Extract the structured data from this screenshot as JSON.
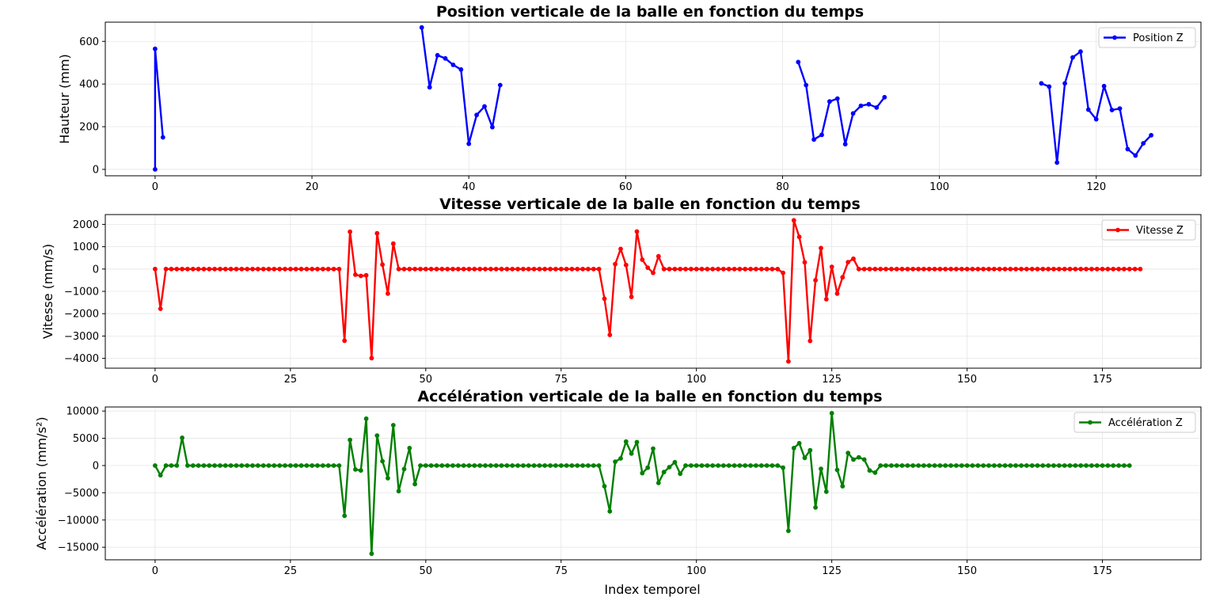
{
  "chart_data": [
    {
      "type": "line",
      "title": "Position verticale de la balle en fonction du temps",
      "xlabel": "",
      "ylabel": "Hauteur (mm)",
      "xlim": [
        -6.35,
        133.35
      ],
      "ylim": [
        -30,
        690
      ],
      "xticks": [
        0,
        20,
        40,
        60,
        80,
        100,
        120
      ],
      "yticks": [
        0,
        200,
        400,
        600
      ],
      "grid": true,
      "legend_position": "top-right",
      "series": [
        {
          "name": "Position Z",
          "color": "#0000ff",
          "segments": [
            {
              "x": [
                0,
                0,
                1
              ],
              "y": [
                0,
                565,
                150
              ]
            },
            {
              "x": [
                34,
                35,
                36,
                37,
                38,
                39,
                40,
                41,
                42,
                43,
                44
              ],
              "y": [
                665,
                385,
                535,
                520,
                490,
                468,
                120,
                255,
                295,
                198,
                395
              ]
            },
            {
              "x": [
                82,
                83,
                84,
                85,
                86,
                87,
                88,
                89,
                90,
                91,
                92,
                93
              ],
              "y": [
                503,
                395,
                140,
                162,
                318,
                332,
                118,
                262,
                298,
                305,
                290,
                338
              ]
            },
            {
              "x": [
                113,
                114,
                115,
                116,
                117,
                118,
                119,
                120,
                121,
                122,
                123,
                124,
                125,
                126,
                127
              ],
              "y": [
                403,
                388,
                32,
                403,
                525,
                552,
                280,
                235,
                390,
                278,
                285,
                95,
                65,
                122,
                160
              ]
            }
          ]
        }
      ]
    },
    {
      "type": "line",
      "title": "Vitesse verticale de la balle en fonction du temps",
      "xlabel": "",
      "ylabel": "Vitesse (mm/s)",
      "xlim": [
        -9.2,
        193.2
      ],
      "ylim": [
        -4440,
        2440
      ],
      "xticks": [
        0,
        25,
        50,
        75,
        100,
        125,
        150,
        175
      ],
      "yticks": [
        -4000,
        -3000,
        -2000,
        -1000,
        0,
        1000,
        2000
      ],
      "grid": true,
      "legend_position": "top-right",
      "series": [
        {
          "name": "Vitesse Z",
          "color": "#ff0000",
          "x_start": 0,
          "values": [
            0,
            -1780,
            0,
            0,
            0,
            0,
            0,
            0,
            0,
            0,
            0,
            0,
            0,
            0,
            0,
            0,
            0,
            0,
            0,
            0,
            0,
            0,
            0,
            0,
            0,
            0,
            0,
            0,
            0,
            0,
            0,
            0,
            0,
            0,
            0,
            -3210,
            1670,
            -250,
            -310,
            -280,
            -3990,
            1600,
            200,
            -1100,
            1140,
            0,
            0,
            0,
            0,
            0,
            0,
            0,
            0,
            0,
            0,
            0,
            0,
            0,
            0,
            0,
            0,
            0,
            0,
            0,
            0,
            0,
            0,
            0,
            0,
            0,
            0,
            0,
            0,
            0,
            0,
            0,
            0,
            0,
            0,
            0,
            0,
            0,
            0,
            -1330,
            -2950,
            220,
            900,
            180,
            -1250,
            1680,
            420,
            60,
            -170,
            570,
            0,
            0,
            0,
            0,
            0,
            0,
            0,
            0,
            0,
            0,
            0,
            0,
            0,
            0,
            0,
            0,
            0,
            0,
            0,
            0,
            0,
            0,
            -170,
            -4140,
            2180,
            1440,
            300,
            -3220,
            -500,
            940,
            -1350,
            100,
            -1100,
            -370,
            310,
            460,
            0,
            0,
            0,
            0,
            0,
            0,
            0,
            0,
            0,
            0,
            0,
            0,
            0,
            0,
            0,
            0,
            0,
            0,
            0,
            0,
            0,
            0,
            0,
            0,
            0,
            0,
            0,
            0,
            0,
            0,
            0,
            0,
            0,
            0,
            0,
            0,
            0,
            0,
            0,
            0,
            0,
            0,
            0,
            0,
            0,
            0,
            0,
            0,
            0,
            0,
            0,
            0,
            0
          ]
        }
      ]
    },
    {
      "type": "line",
      "title": "Accélération verticale de la balle en fonction du temps",
      "xlabel": "Index temporel",
      "ylabel": "Accélération (mm/s²)",
      "xlim": [
        -9.2,
        193.2
      ],
      "ylim": [
        -17300,
        10750
      ],
      "xticks": [
        0,
        25,
        50,
        75,
        100,
        125,
        150,
        175
      ],
      "yticks": [
        -15000,
        -10000,
        -5000,
        0,
        5000,
        10000
      ],
      "grid": true,
      "legend_position": "top-right",
      "series": [
        {
          "name": "Accélération Z",
          "color": "#008000",
          "x_start": 0,
          "values": [
            0,
            -1780,
            0,
            0,
            0,
            5100,
            0,
            0,
            0,
            0,
            0,
            0,
            0,
            0,
            0,
            0,
            0,
            0,
            0,
            0,
            0,
            0,
            0,
            0,
            0,
            0,
            0,
            0,
            0,
            0,
            0,
            0,
            0,
            0,
            0,
            -9230,
            4700,
            -720,
            -900,
            8600,
            -16180,
            5500,
            800,
            -2330,
            7400,
            -4700,
            -640,
            3200,
            -3400,
            0,
            0,
            0,
            0,
            0,
            0,
            0,
            0,
            0,
            0,
            0,
            0,
            0,
            0,
            0,
            0,
            0,
            0,
            0,
            0,
            0,
            0,
            0,
            0,
            0,
            0,
            0,
            0,
            0,
            0,
            0,
            0,
            0,
            0,
            -3800,
            -8400,
            700,
            1300,
            4400,
            2200,
            4300,
            -1400,
            -400,
            3100,
            -3200,
            -1200,
            -300,
            600,
            -1500,
            0,
            0,
            0,
            0,
            0,
            0,
            0,
            0,
            0,
            0,
            0,
            0,
            0,
            0,
            0,
            0,
            0,
            0,
            -400,
            -12000,
            3200,
            4100,
            1400,
            2800,
            -7700,
            -600,
            -4800,
            9600,
            -800,
            -3800,
            2300,
            1100,
            1500,
            1100,
            -900,
            -1300,
            0,
            0,
            0,
            0,
            0,
            0,
            0,
            0,
            0,
            0,
            0,
            0,
            0,
            0,
            0,
            0,
            0,
            0,
            0,
            0,
            0,
            0,
            0,
            0,
            0,
            0,
            0,
            0,
            0,
            0,
            0,
            0,
            0,
            0,
            0,
            0,
            0,
            0,
            0,
            0,
            0,
            0,
            0,
            0,
            0,
            0,
            0
          ]
        }
      ]
    }
  ]
}
